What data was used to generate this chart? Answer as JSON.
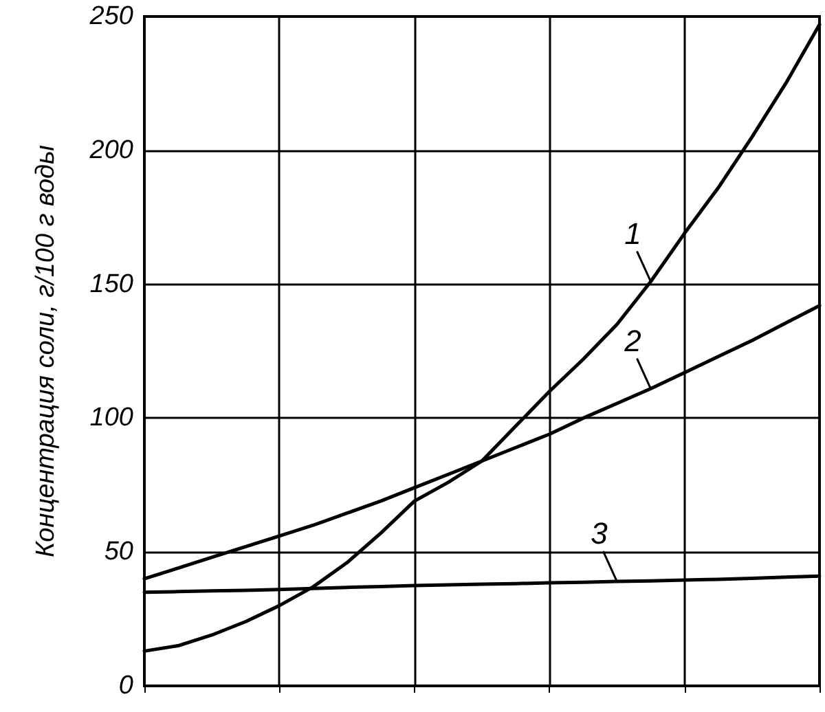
{
  "chart_data": {
    "type": "line",
    "ylabel": "Концентрация соли, г/100 г воды",
    "categories": [
      null,
      null,
      null,
      null,
      null,
      null,
      null,
      null,
      null,
      null,
      null,
      null,
      null,
      null,
      null,
      null,
      null,
      null,
      null,
      null,
      null
    ],
    "ylim": [
      0,
      250
    ],
    "yticks": [
      0,
      50,
      100,
      150,
      200,
      250
    ],
    "tick_labels": "y",
    "grid": true,
    "marker": "none",
    "line_style": "solid",
    "series": [
      {
        "color": "#000000",
        "values": [
          13,
          15,
          19,
          24,
          30,
          37,
          46,
          57,
          69,
          76,
          84,
          97,
          110,
          122,
          135,
          151,
          169,
          186,
          205,
          225,
          247
        ]
      },
      {
        "color": "#000000",
        "values": [
          40,
          44,
          48,
          52,
          56,
          60,
          64.5,
          69,
          74,
          79,
          84,
          89,
          94,
          100,
          105.5,
          111,
          117,
          123,
          129,
          135.5,
          142
        ]
      },
      {
        "color": "#000000",
        "values": [
          35,
          35.2,
          35.5,
          35.7,
          36,
          36.4,
          36.8,
          37.1,
          37.5,
          37.7,
          38,
          38.2,
          38.5,
          38.7,
          39,
          39.2,
          39.5,
          39.8,
          40.2,
          40.6,
          41
        ]
      }
    ],
    "annotations": [
      "1",
      "2",
      "3"
    ]
  }
}
